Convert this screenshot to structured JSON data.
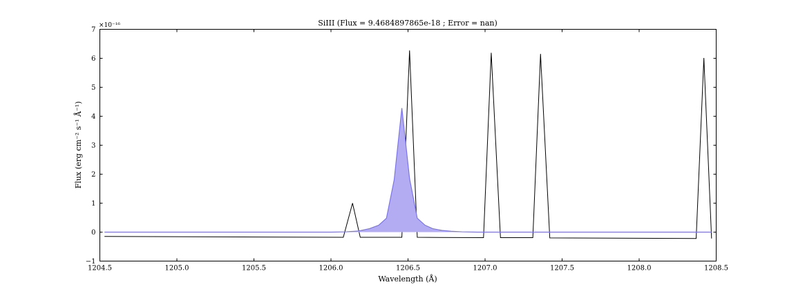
{
  "chart_data": {
    "type": "line",
    "title": "SiIII (Flux = 9.4684897865e-18 ; Error = nan)",
    "xlabel": "Wavelength (Å)",
    "ylabel": "Flux (erg cm⁻² s⁻¹ Å⁻¹)",
    "y_scale_label": "×10⁻¹⁶",
    "xlim": [
      1204.5,
      1208.5
    ],
    "ylim": [
      -1,
      7
    ],
    "xticks": [
      1204.5,
      1205.0,
      1205.5,
      1206.0,
      1206.5,
      1207.0,
      1207.5,
      1208.0,
      1208.5
    ],
    "xtick_labels": [
      "1204.5",
      "1205.0",
      "1205.5",
      "1206.0",
      "1206.5",
      "1207.0",
      "1207.5",
      "1208.0",
      "1208.5"
    ],
    "yticks": [
      -1,
      0,
      1,
      2,
      3,
      4,
      5,
      6,
      7
    ],
    "ytick_labels": [
      "−1",
      "0",
      "1",
      "2",
      "3",
      "4",
      "5",
      "6",
      "7"
    ],
    "grid": false,
    "series": [
      {
        "kind": "line",
        "color": "#000000",
        "x": [
          1204.53,
          1206.08,
          1206.14,
          1206.19,
          1206.46,
          1206.51,
          1206.56,
          1206.99,
          1207.04,
          1207.1,
          1207.31,
          1207.36,
          1207.42,
          1208.37,
          1208.42,
          1208.47
        ],
        "y": [
          -0.15,
          -0.18,
          1.0,
          -0.18,
          -0.18,
          6.27,
          -0.18,
          -0.19,
          6.19,
          -0.19,
          -0.19,
          6.15,
          -0.2,
          -0.22,
          6.01,
          -0.22
        ]
      },
      {
        "kind": "area",
        "fill": "#b3acf2",
        "stroke": "#7b74ea",
        "x": [
          1204.53,
          1206.0,
          1206.1,
          1206.18,
          1206.25,
          1206.31,
          1206.36,
          1206.41,
          1206.46,
          1206.51,
          1206.56,
          1206.61,
          1206.66,
          1206.72,
          1206.78,
          1206.85,
          1206.95,
          1207.1,
          1208.47
        ],
        "y": [
          0.0,
          0.0,
          0.01,
          0.04,
          0.12,
          0.24,
          0.48,
          1.8,
          4.28,
          1.85,
          0.48,
          0.24,
          0.12,
          0.06,
          0.03,
          0.01,
          0.0,
          0.0,
          0.0
        ]
      }
    ]
  }
}
